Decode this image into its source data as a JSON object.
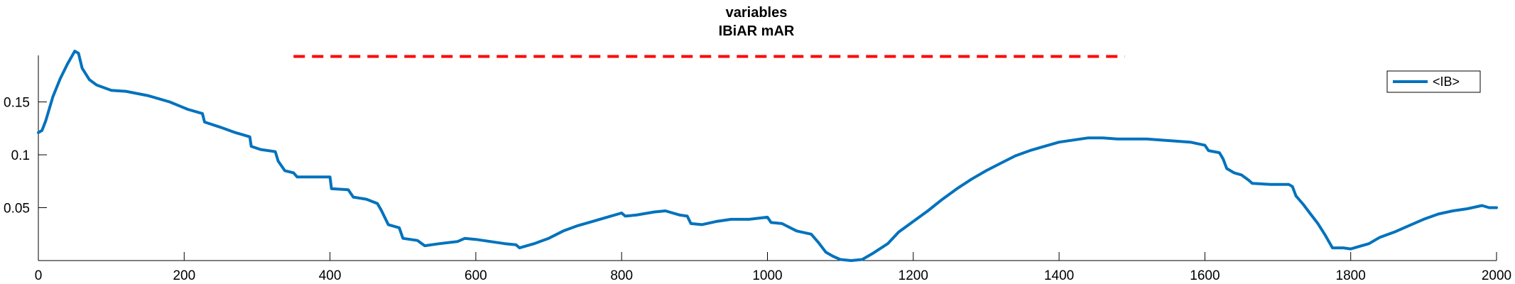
{
  "chart_data": {
    "type": "line",
    "title_lines": [
      "variables",
      "IBiAR mAR"
    ],
    "xlim": [
      0,
      2000
    ],
    "ylim": [
      0,
      0.194
    ],
    "x_ticks": [
      0,
      200,
      400,
      600,
      800,
      1000,
      1200,
      1400,
      1600,
      1800,
      2000
    ],
    "x_tick_labels": [
      "0",
      "200",
      "400",
      "600",
      "800",
      "1000",
      "1200",
      "1400",
      "1600",
      "1800",
      "2000"
    ],
    "y_ticks": [
      0.05,
      0.1,
      0.15
    ],
    "y_tick_labels": [
      "0.05",
      "0.1",
      "0.15"
    ],
    "grid": false,
    "legend_position": "top-right",
    "colors": {
      "series": "#0072BD",
      "reference": "#FF0000"
    },
    "reference_line": {
      "style": "dashed",
      "x_start": 350,
      "x_end": 1490,
      "y": 0.193
    },
    "series": [
      {
        "name": "<IB>",
        "points": [
          [
            0,
            0.121
          ],
          [
            5,
            0.123
          ],
          [
            10,
            0.132
          ],
          [
            20,
            0.155
          ],
          [
            30,
            0.172
          ],
          [
            40,
            0.186
          ],
          [
            50,
            0.198
          ],
          [
            55,
            0.196
          ],
          [
            60,
            0.182
          ],
          [
            70,
            0.171
          ],
          [
            80,
            0.166
          ],
          [
            100,
            0.161
          ],
          [
            120,
            0.16
          ],
          [
            150,
            0.156
          ],
          [
            180,
            0.15
          ],
          [
            205,
            0.143
          ],
          [
            225,
            0.139
          ],
          [
            228,
            0.131
          ],
          [
            250,
            0.126
          ],
          [
            270,
            0.121
          ],
          [
            290,
            0.117
          ],
          [
            292,
            0.108
          ],
          [
            305,
            0.105
          ],
          [
            325,
            0.103
          ],
          [
            329,
            0.094
          ],
          [
            333,
            0.09
          ],
          [
            338,
            0.085
          ],
          [
            350,
            0.083
          ],
          [
            355,
            0.079
          ],
          [
            380,
            0.079
          ],
          [
            400,
            0.079
          ],
          [
            402,
            0.068
          ],
          [
            425,
            0.067
          ],
          [
            432,
            0.06
          ],
          [
            450,
            0.058
          ],
          [
            465,
            0.054
          ],
          [
            470,
            0.048
          ],
          [
            480,
            0.034
          ],
          [
            495,
            0.031
          ],
          [
            500,
            0.021
          ],
          [
            520,
            0.019
          ],
          [
            530,
            0.014
          ],
          [
            550,
            0.016
          ],
          [
            575,
            0.018
          ],
          [
            585,
            0.021
          ],
          [
            600,
            0.02
          ],
          [
            620,
            0.018
          ],
          [
            640,
            0.016
          ],
          [
            655,
            0.015
          ],
          [
            660,
            0.012
          ],
          [
            680,
            0.016
          ],
          [
            700,
            0.021
          ],
          [
            720,
            0.028
          ],
          [
            740,
            0.033
          ],
          [
            760,
            0.037
          ],
          [
            780,
            0.041
          ],
          [
            800,
            0.045
          ],
          [
            805,
            0.042
          ],
          [
            820,
            0.043
          ],
          [
            845,
            0.046
          ],
          [
            860,
            0.047
          ],
          [
            880,
            0.043
          ],
          [
            890,
            0.042
          ],
          [
            895,
            0.035
          ],
          [
            910,
            0.034
          ],
          [
            930,
            0.037
          ],
          [
            950,
            0.039
          ],
          [
            975,
            0.039
          ],
          [
            1000,
            0.041
          ],
          [
            1005,
            0.036
          ],
          [
            1020,
            0.035
          ],
          [
            1040,
            0.028
          ],
          [
            1060,
            0.025
          ],
          [
            1070,
            0.017
          ],
          [
            1080,
            0.008
          ],
          [
            1090,
            0.004
          ],
          [
            1100,
            0.001
          ],
          [
            1115,
            0.0
          ],
          [
            1130,
            0.001
          ],
          [
            1145,
            0.007
          ],
          [
            1165,
            0.016
          ],
          [
            1180,
            0.027
          ],
          [
            1200,
            0.037
          ],
          [
            1220,
            0.047
          ],
          [
            1240,
            0.058
          ],
          [
            1260,
            0.068
          ],
          [
            1280,
            0.077
          ],
          [
            1300,
            0.085
          ],
          [
            1320,
            0.092
          ],
          [
            1340,
            0.099
          ],
          [
            1360,
            0.104
          ],
          [
            1380,
            0.108
          ],
          [
            1400,
            0.112
          ],
          [
            1420,
            0.114
          ],
          [
            1440,
            0.116
          ],
          [
            1460,
            0.116
          ],
          [
            1480,
            0.115
          ],
          [
            1500,
            0.115
          ],
          [
            1520,
            0.115
          ],
          [
            1540,
            0.114
          ],
          [
            1560,
            0.113
          ],
          [
            1580,
            0.112
          ],
          [
            1600,
            0.109
          ],
          [
            1605,
            0.104
          ],
          [
            1620,
            0.102
          ],
          [
            1625,
            0.096
          ],
          [
            1630,
            0.087
          ],
          [
            1640,
            0.083
          ],
          [
            1650,
            0.081
          ],
          [
            1660,
            0.076
          ],
          [
            1665,
            0.073
          ],
          [
            1690,
            0.072
          ],
          [
            1715,
            0.072
          ],
          [
            1720,
            0.07
          ],
          [
            1725,
            0.061
          ],
          [
            1735,
            0.053
          ],
          [
            1745,
            0.044
          ],
          [
            1755,
            0.035
          ],
          [
            1765,
            0.024
          ],
          [
            1775,
            0.012
          ],
          [
            1790,
            0.012
          ],
          [
            1800,
            0.011
          ],
          [
            1810,
            0.013
          ],
          [
            1825,
            0.016
          ],
          [
            1840,
            0.022
          ],
          [
            1860,
            0.027
          ],
          [
            1880,
            0.033
          ],
          [
            1900,
            0.039
          ],
          [
            1920,
            0.044
          ],
          [
            1940,
            0.047
          ],
          [
            1960,
            0.049
          ],
          [
            1980,
            0.052
          ],
          [
            1990,
            0.05
          ],
          [
            2000,
            0.05
          ]
        ]
      }
    ]
  }
}
